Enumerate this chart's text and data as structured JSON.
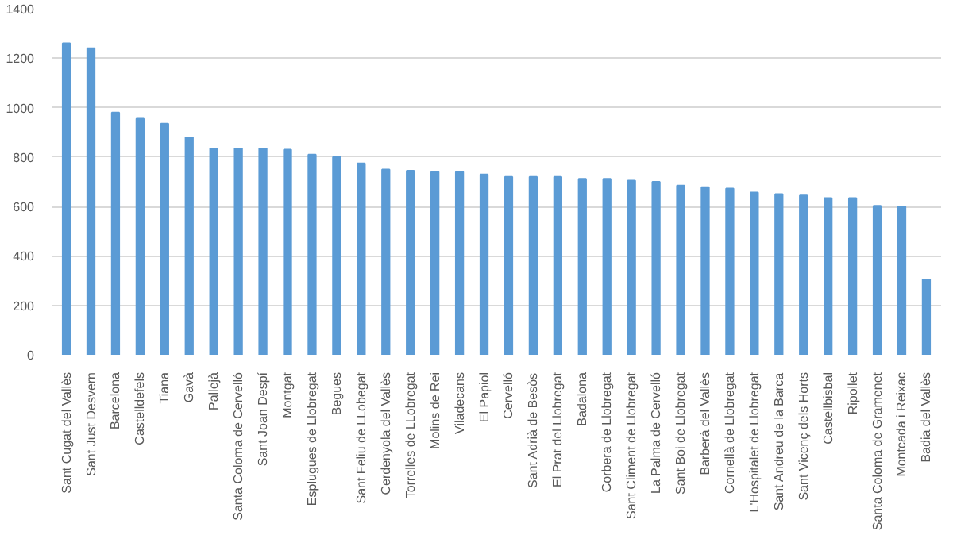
{
  "chart_data": {
    "type": "bar",
    "categories": [
      "Sant Cugat del Vallès",
      "Sant Just Desvern",
      "Barcelona",
      "Castelldefels",
      "Tiana",
      "Gavà",
      "Pallejà",
      "Santa Coloma de Cervelló",
      "Sant Joan Despí",
      "Montgat",
      "Esplugues de Llobregat",
      "Begues",
      "Sant Feliu de LLobegat",
      "Cerdenyola del Vallès",
      "Torrelles de LLobregat",
      "Molins de Rei",
      "Viladecans",
      "El Papiol",
      "Cervelló",
      "Sant Adrià de Besòs",
      "El Prat del Llobregat",
      "Badalona",
      "Corbera de Llobregat",
      "Sant Climent de Llobregat",
      "La Palma de Cervelló",
      "Sant Boi de Llobregat",
      "Barberà del Vallès",
      "Cornellà de Llobregat",
      "L'Hospitalet de Llobregat",
      "Sant Andreu de la Barca",
      "Sant Vicenç dels Horts",
      "Castellbisbal",
      "Ripollet",
      "Santa Coloma de Gramenet",
      "Montcada i Reixac",
      "Badia del Vallès"
    ],
    "values": [
      1260,
      1240,
      980,
      955,
      935,
      880,
      835,
      835,
      835,
      830,
      810,
      800,
      775,
      750,
      745,
      740,
      740,
      730,
      720,
      720,
      720,
      712,
      712,
      705,
      700,
      685,
      678,
      673,
      657,
      650,
      645,
      634,
      634,
      603,
      600,
      305
    ],
    "color": "#5b9bd5",
    "ylim": [
      0,
      1400
    ],
    "yticks": [
      0,
      200,
      400,
      600,
      800,
      1000,
      1200,
      1400
    ],
    "grid": "y"
  }
}
